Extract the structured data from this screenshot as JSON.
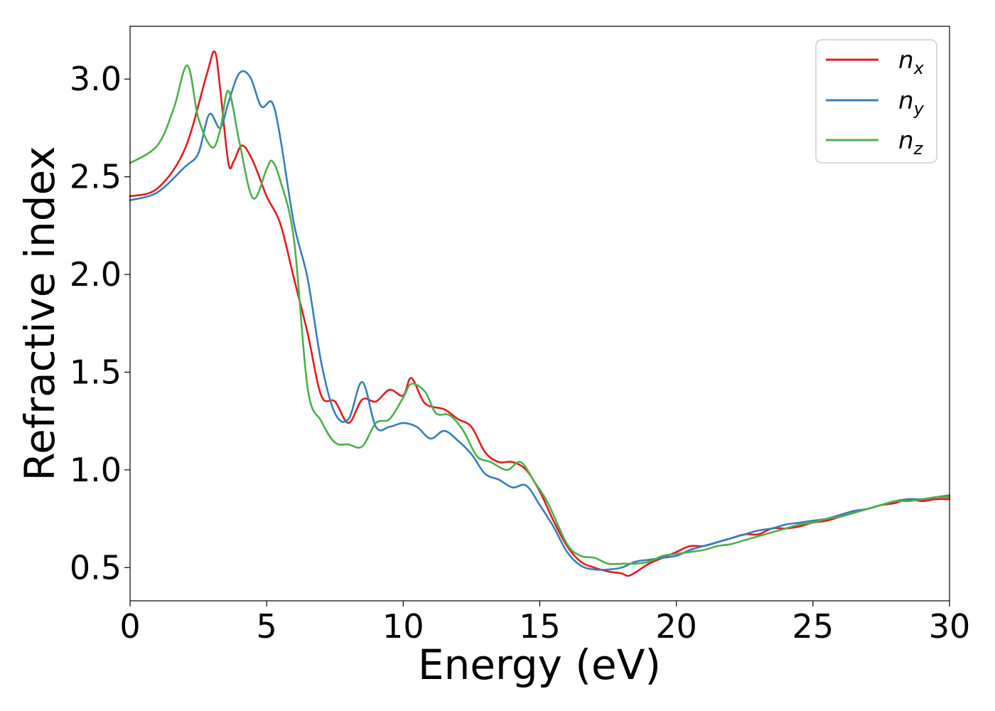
{
  "chart_data": {
    "type": "line",
    "title": "",
    "xlabel": "Energy (eV)",
    "ylabel": "Refractive index",
    "xlim": [
      0,
      30
    ],
    "ylim": [
      0.33,
      3.27
    ],
    "xticks": [
      0,
      5,
      10,
      15,
      20,
      25,
      30
    ],
    "xtick_labels": [
      "0",
      "5",
      "10",
      "15",
      "20",
      "25",
      "30"
    ],
    "yticks": [
      0.5,
      1.0,
      1.5,
      2.0,
      2.5,
      3.0
    ],
    "ytick_labels": [
      "0.5",
      "1.0",
      "1.5",
      "2.0",
      "2.5",
      "3.0"
    ],
    "grid": false,
    "legend_position": "top-right",
    "legend": [
      {
        "base": "n",
        "sub": "x"
      },
      {
        "base": "n",
        "sub": "y"
      },
      {
        "base": "n",
        "sub": "z"
      }
    ],
    "series": [
      {
        "name": "n_x",
        "color": "#e41a1c",
        "points": [
          [
            0,
            2.4
          ],
          [
            1,
            2.44
          ],
          [
            2,
            2.64
          ],
          [
            2.8,
            3.02
          ],
          [
            3.1,
            3.14
          ],
          [
            3.3,
            2.95
          ],
          [
            3.6,
            2.57
          ],
          [
            3.8,
            2.58
          ],
          [
            4.1,
            2.66
          ],
          [
            4.5,
            2.58
          ],
          [
            5,
            2.4
          ],
          [
            5.5,
            2.26
          ],
          [
            6,
            1.98
          ],
          [
            6.5,
            1.7
          ],
          [
            7,
            1.38
          ],
          [
            7.5,
            1.35
          ],
          [
            8,
            1.24
          ],
          [
            8.5,
            1.36
          ],
          [
            9,
            1.35
          ],
          [
            9.5,
            1.41
          ],
          [
            10,
            1.38
          ],
          [
            10.3,
            1.47
          ],
          [
            10.8,
            1.34
          ],
          [
            11.5,
            1.31
          ],
          [
            12,
            1.26
          ],
          [
            12.5,
            1.22
          ],
          [
            13,
            1.09
          ],
          [
            13.5,
            1.04
          ],
          [
            14,
            1.04
          ],
          [
            14.5,
            1.0
          ],
          [
            15,
            0.89
          ],
          [
            15.5,
            0.74
          ],
          [
            16,
            0.61
          ],
          [
            16.5,
            0.53
          ],
          [
            17,
            0.5
          ],
          [
            17.5,
            0.48
          ],
          [
            18,
            0.47
          ],
          [
            18.3,
            0.46
          ],
          [
            19,
            0.52
          ],
          [
            19.5,
            0.55
          ],
          [
            20,
            0.58
          ],
          [
            20.5,
            0.61
          ],
          [
            21,
            0.61
          ],
          [
            21.5,
            0.63
          ],
          [
            22,
            0.65
          ],
          [
            22.5,
            0.67
          ],
          [
            23,
            0.67
          ],
          [
            23.5,
            0.7
          ],
          [
            24,
            0.7
          ],
          [
            24.5,
            0.71
          ],
          [
            25,
            0.73
          ],
          [
            25.5,
            0.74
          ],
          [
            26,
            0.76
          ],
          [
            26.5,
            0.78
          ],
          [
            27,
            0.8
          ],
          [
            27.5,
            0.82
          ],
          [
            28,
            0.83
          ],
          [
            28.5,
            0.85
          ],
          [
            29,
            0.84
          ],
          [
            29.5,
            0.85
          ],
          [
            30,
            0.85
          ]
        ]
      },
      {
        "name": "n_y",
        "color": "#377eb8",
        "points": [
          [
            0,
            2.38
          ],
          [
            1,
            2.42
          ],
          [
            2,
            2.55
          ],
          [
            2.5,
            2.62
          ],
          [
            2.9,
            2.82
          ],
          [
            3.3,
            2.75
          ],
          [
            3.6,
            2.88
          ],
          [
            4,
            3.03
          ],
          [
            4.4,
            3.01
          ],
          [
            4.8,
            2.86
          ],
          [
            5.2,
            2.88
          ],
          [
            5.5,
            2.7
          ],
          [
            6,
            2.26
          ],
          [
            6.5,
            1.98
          ],
          [
            7,
            1.55
          ],
          [
            7.5,
            1.29
          ],
          [
            8,
            1.26
          ],
          [
            8.5,
            1.45
          ],
          [
            9,
            1.22
          ],
          [
            9.5,
            1.22
          ],
          [
            10,
            1.24
          ],
          [
            10.5,
            1.22
          ],
          [
            11,
            1.16
          ],
          [
            11.5,
            1.2
          ],
          [
            12,
            1.15
          ],
          [
            12.5,
            1.08
          ],
          [
            13,
            0.98
          ],
          [
            13.5,
            0.95
          ],
          [
            14,
            0.91
          ],
          [
            14.5,
            0.92
          ],
          [
            15,
            0.82
          ],
          [
            15.5,
            0.71
          ],
          [
            16,
            0.58
          ],
          [
            16.5,
            0.51
          ],
          [
            17,
            0.49
          ],
          [
            17.5,
            0.49
          ],
          [
            18,
            0.5
          ],
          [
            18.5,
            0.53
          ],
          [
            19,
            0.54
          ],
          [
            19.5,
            0.55
          ],
          [
            20,
            0.56
          ],
          [
            20.5,
            0.59
          ],
          [
            21,
            0.61
          ],
          [
            21.5,
            0.63
          ],
          [
            22,
            0.65
          ],
          [
            22.5,
            0.67
          ],
          [
            23,
            0.69
          ],
          [
            23.5,
            0.7
          ],
          [
            24,
            0.72
          ],
          [
            24.5,
            0.73
          ],
          [
            25,
            0.74
          ],
          [
            25.5,
            0.75
          ],
          [
            26,
            0.77
          ],
          [
            26.5,
            0.79
          ],
          [
            27,
            0.8
          ],
          [
            27.5,
            0.82
          ],
          [
            28,
            0.84
          ],
          [
            28.5,
            0.85
          ],
          [
            29,
            0.85
          ],
          [
            29.5,
            0.86
          ],
          [
            30,
            0.87
          ]
        ]
      },
      {
        "name": "n_z",
        "color": "#4daf4a",
        "points": [
          [
            0,
            2.57
          ],
          [
            1,
            2.66
          ],
          [
            1.6,
            2.85
          ],
          [
            2.1,
            3.07
          ],
          [
            2.5,
            2.8
          ],
          [
            3.0,
            2.65
          ],
          [
            3.3,
            2.74
          ],
          [
            3.6,
            2.94
          ],
          [
            4,
            2.68
          ],
          [
            4.5,
            2.39
          ],
          [
            5,
            2.54
          ],
          [
            5.2,
            2.58
          ],
          [
            5.5,
            2.48
          ],
          [
            6,
            2.18
          ],
          [
            6.5,
            1.42
          ],
          [
            7,
            1.25
          ],
          [
            7.5,
            1.14
          ],
          [
            8,
            1.13
          ],
          [
            8.5,
            1.12
          ],
          [
            9,
            1.24
          ],
          [
            9.5,
            1.26
          ],
          [
            10,
            1.37
          ],
          [
            10.3,
            1.44
          ],
          [
            10.8,
            1.4
          ],
          [
            11.2,
            1.29
          ],
          [
            11.7,
            1.28
          ],
          [
            12.2,
            1.2
          ],
          [
            12.7,
            1.07
          ],
          [
            13.2,
            1.04
          ],
          [
            13.8,
            1.0
          ],
          [
            14.3,
            1.04
          ],
          [
            14.8,
            0.94
          ],
          [
            15.3,
            0.83
          ],
          [
            16,
            0.62
          ],
          [
            16.5,
            0.56
          ],
          [
            17,
            0.55
          ],
          [
            17.5,
            0.52
          ],
          [
            18,
            0.52
          ],
          [
            18.5,
            0.52
          ],
          [
            19,
            0.53
          ],
          [
            19.5,
            0.56
          ],
          [
            20,
            0.57
          ],
          [
            20.5,
            0.58
          ],
          [
            21,
            0.59
          ],
          [
            21.5,
            0.61
          ],
          [
            22,
            0.62
          ],
          [
            22.5,
            0.64
          ],
          [
            23,
            0.66
          ],
          [
            23.5,
            0.68
          ],
          [
            24,
            0.7
          ],
          [
            24.5,
            0.72
          ],
          [
            25,
            0.73
          ],
          [
            25.5,
            0.75
          ],
          [
            26,
            0.76
          ],
          [
            26.5,
            0.78
          ],
          [
            27,
            0.8
          ],
          [
            27.5,
            0.82
          ],
          [
            28,
            0.84
          ],
          [
            28.5,
            0.84
          ],
          [
            29,
            0.85
          ],
          [
            29.5,
            0.86
          ],
          [
            30,
            0.86
          ]
        ]
      }
    ]
  }
}
